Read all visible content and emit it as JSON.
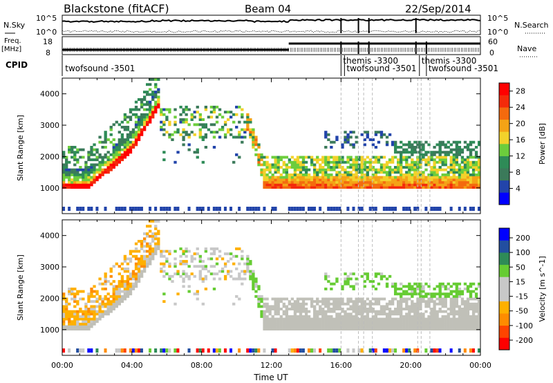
{
  "header": {
    "station": "Blackstone (fitACF)",
    "beam": "Beam 04",
    "date": "22/Sep/2014"
  },
  "top_panels": {
    "nsky_label": "N.Sky",
    "nsky_ticks": [
      "10^5",
      "10^0"
    ],
    "nsearch_label": "N.Search",
    "nsearch_ticks": [
      "10^5",
      "10^0"
    ],
    "freq_label": "Freq.",
    "freq_unit": "[MHz]",
    "freq_ticks": [
      "18",
      "8"
    ],
    "nave_label": "Nave",
    "nave_ticks": [
      "60",
      "0"
    ],
    "cpid_label": "CPID",
    "cpid_entries": [
      {
        "label": "twofsound -3501",
        "time_h": 0.05
      },
      {
        "label": "themis -3300",
        "time_h": 16.0
      },
      {
        "label": "twofsound -3501",
        "time_h": 16.2
      },
      {
        "label": "themis -3300",
        "time_h": 20.5
      },
      {
        "label": "twofsound -3501",
        "time_h": 20.9
      }
    ]
  },
  "colors": {
    "power_scale": [
      "#0000ff",
      "#2244aa",
      "#3b7a5a",
      "#2e8b57",
      "#6ccd3c",
      "#f2d22b",
      "#f4a316",
      "#f46a0e",
      "#f42a0a",
      "#ff0000"
    ],
    "velocity_scale": [
      "#ff0000",
      "#ff4400",
      "#ff8c00",
      "#ffb000",
      "#c8c8c8",
      "#c8c8c8",
      "#66cc33",
      "#2e8b57",
      "#224ea0",
      "#0000ff"
    ],
    "ground_scatter": "#c0c0b8"
  },
  "chart_data": [
    {
      "type": "heatmap",
      "name_panel": "power",
      "xlabel": "",
      "ylabel": "Slant Range [km]",
      "xlim": [
        0,
        24
      ],
      "ylim": [
        180,
        4500
      ],
      "yticks": [
        "1000",
        "2000",
        "3000",
        "4000"
      ],
      "colorbar": {
        "label": "Power [dB]",
        "ticks": [
          "4",
          "8",
          "12",
          "16",
          "20",
          "24",
          "28"
        ],
        "range": [
          0,
          30
        ]
      }
    },
    {
      "type": "heatmap",
      "name_panel": "velocity",
      "xlabel": "Time UT",
      "ylabel": "Slant Range [km]",
      "xlim": [
        0,
        24
      ],
      "ylim": [
        180,
        4500
      ],
      "xticks": [
        "00:00",
        "04:00",
        "08:00",
        "12:00",
        "16:00",
        "20:00",
        "00:00"
      ],
      "yticks": [
        "1000",
        "2000",
        "3000",
        "4000"
      ],
      "colorbar": {
        "label": "Velocity [m s^-1]",
        "ticks": [
          "200",
          "100",
          "50",
          "15",
          "-15",
          "-50",
          "-100",
          "-200"
        ],
        "range": [
          -250,
          250
        ]
      }
    }
  ]
}
